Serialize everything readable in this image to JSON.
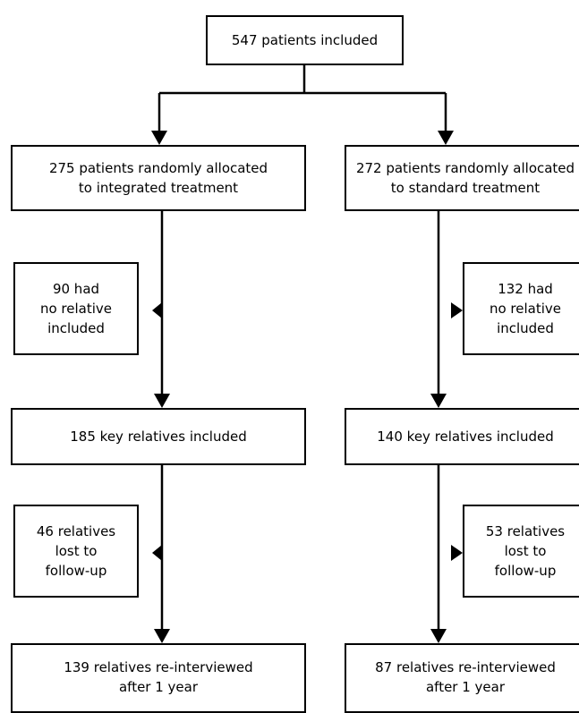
{
  "diagram": {
    "top": {
      "lines": [
        "547 patients included"
      ]
    },
    "left": {
      "allocated": {
        "lines": [
          "275 patients randomly allocated",
          "to integrated treatment"
        ]
      },
      "no_relative": {
        "lines": [
          "90 had",
          "no relative",
          "included"
        ]
      },
      "key_relatives": {
        "lines": [
          "185 key relatives included"
        ]
      },
      "lost": {
        "lines": [
          "46 relatives",
          "lost to",
          "follow-up"
        ]
      },
      "reinterviewed": {
        "lines": [
          "139 relatives re-interviewed",
          "after 1 year"
        ]
      }
    },
    "right": {
      "allocated": {
        "lines": [
          "272 patients randomly allocated",
          "to standard treatment"
        ]
      },
      "no_relative": {
        "lines": [
          "132 had",
          "no relative",
          "included"
        ]
      },
      "key_relatives": {
        "lines": [
          "140 key relatives included"
        ]
      },
      "lost": {
        "lines": [
          "53 relatives",
          "lost to",
          "follow-up"
        ]
      },
      "reinterviewed": {
        "lines": [
          "87 relatives re-interviewed",
          "after 1 year"
        ]
      }
    }
  }
}
